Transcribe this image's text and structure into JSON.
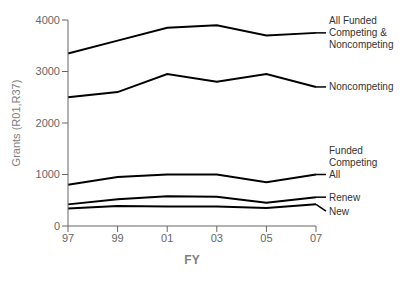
{
  "chart_data": {
    "type": "line",
    "x": [
      97,
      99,
      101,
      103,
      105,
      107
    ],
    "xlabel": "FY",
    "ylabel": "Grants (R01,R37)",
    "xlim": [
      97,
      107
    ],
    "xticks": [
      97,
      99,
      {
        "value": 101,
        "label": "01"
      },
      {
        "value": 103,
        "label": "03"
      },
      {
        "value": 105,
        "label": "05"
      },
      {
        "value": 107,
        "label": "07"
      }
    ],
    "ylim": [
      0,
      4000
    ],
    "yticks": [
      0,
      1000,
      2000,
      3000,
      4000
    ],
    "grid": false,
    "color": "#000000",
    "series": [
      {
        "name": "All Funded\nCompeting &\nNoncompeting",
        "values": [
          3350,
          3600,
          3850,
          3900,
          3700,
          3750
        ]
      },
      {
        "name": "Noncompeting",
        "values": [
          2500,
          2600,
          2950,
          2800,
          2950,
          2700
        ]
      },
      {
        "name": "All",
        "values": [
          800,
          950,
          1000,
          1000,
          850,
          1000
        ]
      },
      {
        "name": "Renew",
        "values": [
          420,
          520,
          580,
          570,
          450,
          560
        ]
      },
      {
        "name": "New",
        "values": [
          340,
          390,
          380,
          380,
          350,
          420
        ]
      }
    ],
    "annotations": [
      "Funded\nCompeting"
    ]
  }
}
